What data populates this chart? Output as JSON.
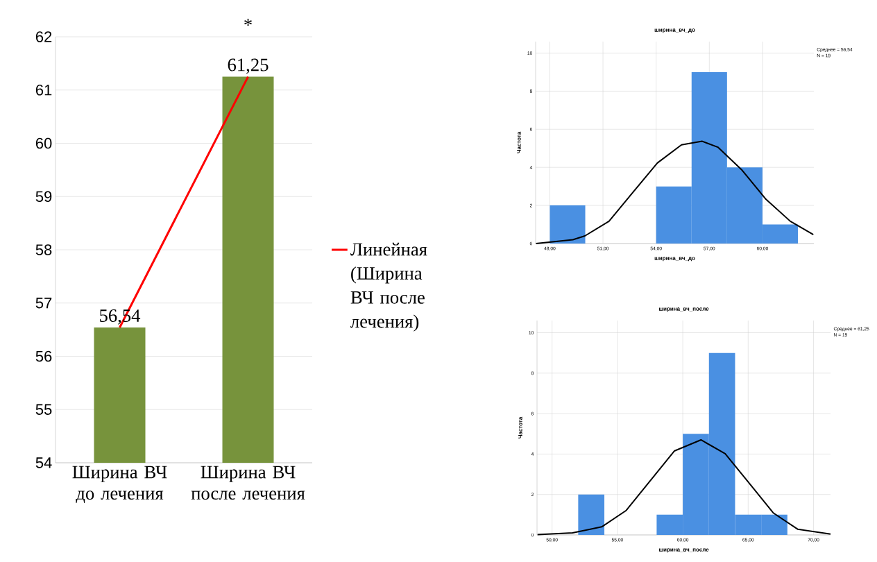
{
  "chart_data": [
    {
      "type": "bar",
      "categories": [
        "Ширина ВЧ до лечения",
        "Ширина ВЧ после лечения"
      ],
      "values": [
        56.54,
        61.25
      ],
      "color": "#77933c",
      "value_labels": [
        "56,54",
        "61,25"
      ],
      "series": [
        {
          "type": "line",
          "name": "Линейная (Ширина ВЧ после лечения)",
          "color": "#ff0000",
          "values": [
            56.54,
            61.25
          ]
        }
      ],
      "ylim": [
        54,
        62
      ],
      "yticks": [
        54,
        55,
        56,
        57,
        58,
        59,
        60,
        61,
        62
      ],
      "grid": "y",
      "legend": "right",
      "annotations": [
        "*"
      ]
    },
    {
      "type": "histogram",
      "title": "ширина_вч_до",
      "xlabel": "ширина_вч_до",
      "ylabel": "Частота",
      "bins": [
        48,
        50,
        52,
        54,
        56,
        58,
        60,
        62
      ],
      "values": [
        2,
        0,
        0,
        3,
        9,
        4,
        1
      ],
      "color": "#4a90e2",
      "series": [
        {
          "type": "line",
          "color": "#000000",
          "x": [
            47.22,
            49.3,
            49.98,
            51.34,
            52.7,
            54.07,
            55.43,
            56.6,
            57.48,
            58.85,
            60.2,
            61.57,
            62.87
          ],
          "values": [
            0.0,
            0.2,
            0.4,
            1.17,
            2.7,
            4.23,
            5.18,
            5.37,
            5.06,
            3.85,
            2.32,
            1.17,
            0.47
          ]
        }
      ],
      "xlim": [
        47.2,
        62.9
      ],
      "ylim": [
        0,
        10.6
      ],
      "xticks": [
        {
          "value": 48,
          "label": "48,00"
        },
        {
          "value": 51,
          "label": "51,00"
        },
        {
          "value": 54,
          "label": "54,00"
        },
        {
          "value": 57,
          "label": "57,00"
        },
        {
          "value": 60,
          "label": "60,00"
        }
      ],
      "yticks": [
        0,
        2,
        4,
        6,
        8,
        10
      ],
      "grid": true,
      "annotations": [
        "Среднее = 56,54",
        "N = 19"
      ]
    },
    {
      "type": "histogram",
      "title": "ширина_вч_после",
      "xlabel": "ширина_вч_после",
      "ylabel": "Частота",
      "bins": [
        52,
        54,
        56,
        58,
        60,
        62,
        64,
        66,
        68
      ],
      "values": [
        2,
        0,
        0,
        1,
        5,
        9,
        1,
        1
      ],
      "color": "#4a90e2",
      "series": [
        {
          "type": "line",
          "color": "#000000",
          "x": [
            48.89,
            51.57,
            53.8,
            55.65,
            57.5,
            59.35,
            61.39,
            63.24,
            65.09,
            66.94,
            68.8,
            71.3
          ],
          "values": [
            0.02,
            0.1,
            0.4,
            1.2,
            2.67,
            4.15,
            4.7,
            4.02,
            2.55,
            1.08,
            0.28,
            0.04
          ]
        }
      ],
      "xlim": [
        48.85,
        71.3
      ],
      "ylim": [
        0,
        10.6
      ],
      "xticks": [
        {
          "value": 50,
          "label": "50,00"
        },
        {
          "value": 55,
          "label": "55,00"
        },
        {
          "value": 60,
          "label": "60,00"
        },
        {
          "value": 65,
          "label": "65,00"
        },
        {
          "value": 70,
          "label": "70,00"
        }
      ],
      "yticks": [
        0,
        2,
        4,
        6,
        8,
        10
      ],
      "grid": true,
      "annotations": [
        "Среднее = 61,25",
        "N = 19"
      ]
    }
  ]
}
